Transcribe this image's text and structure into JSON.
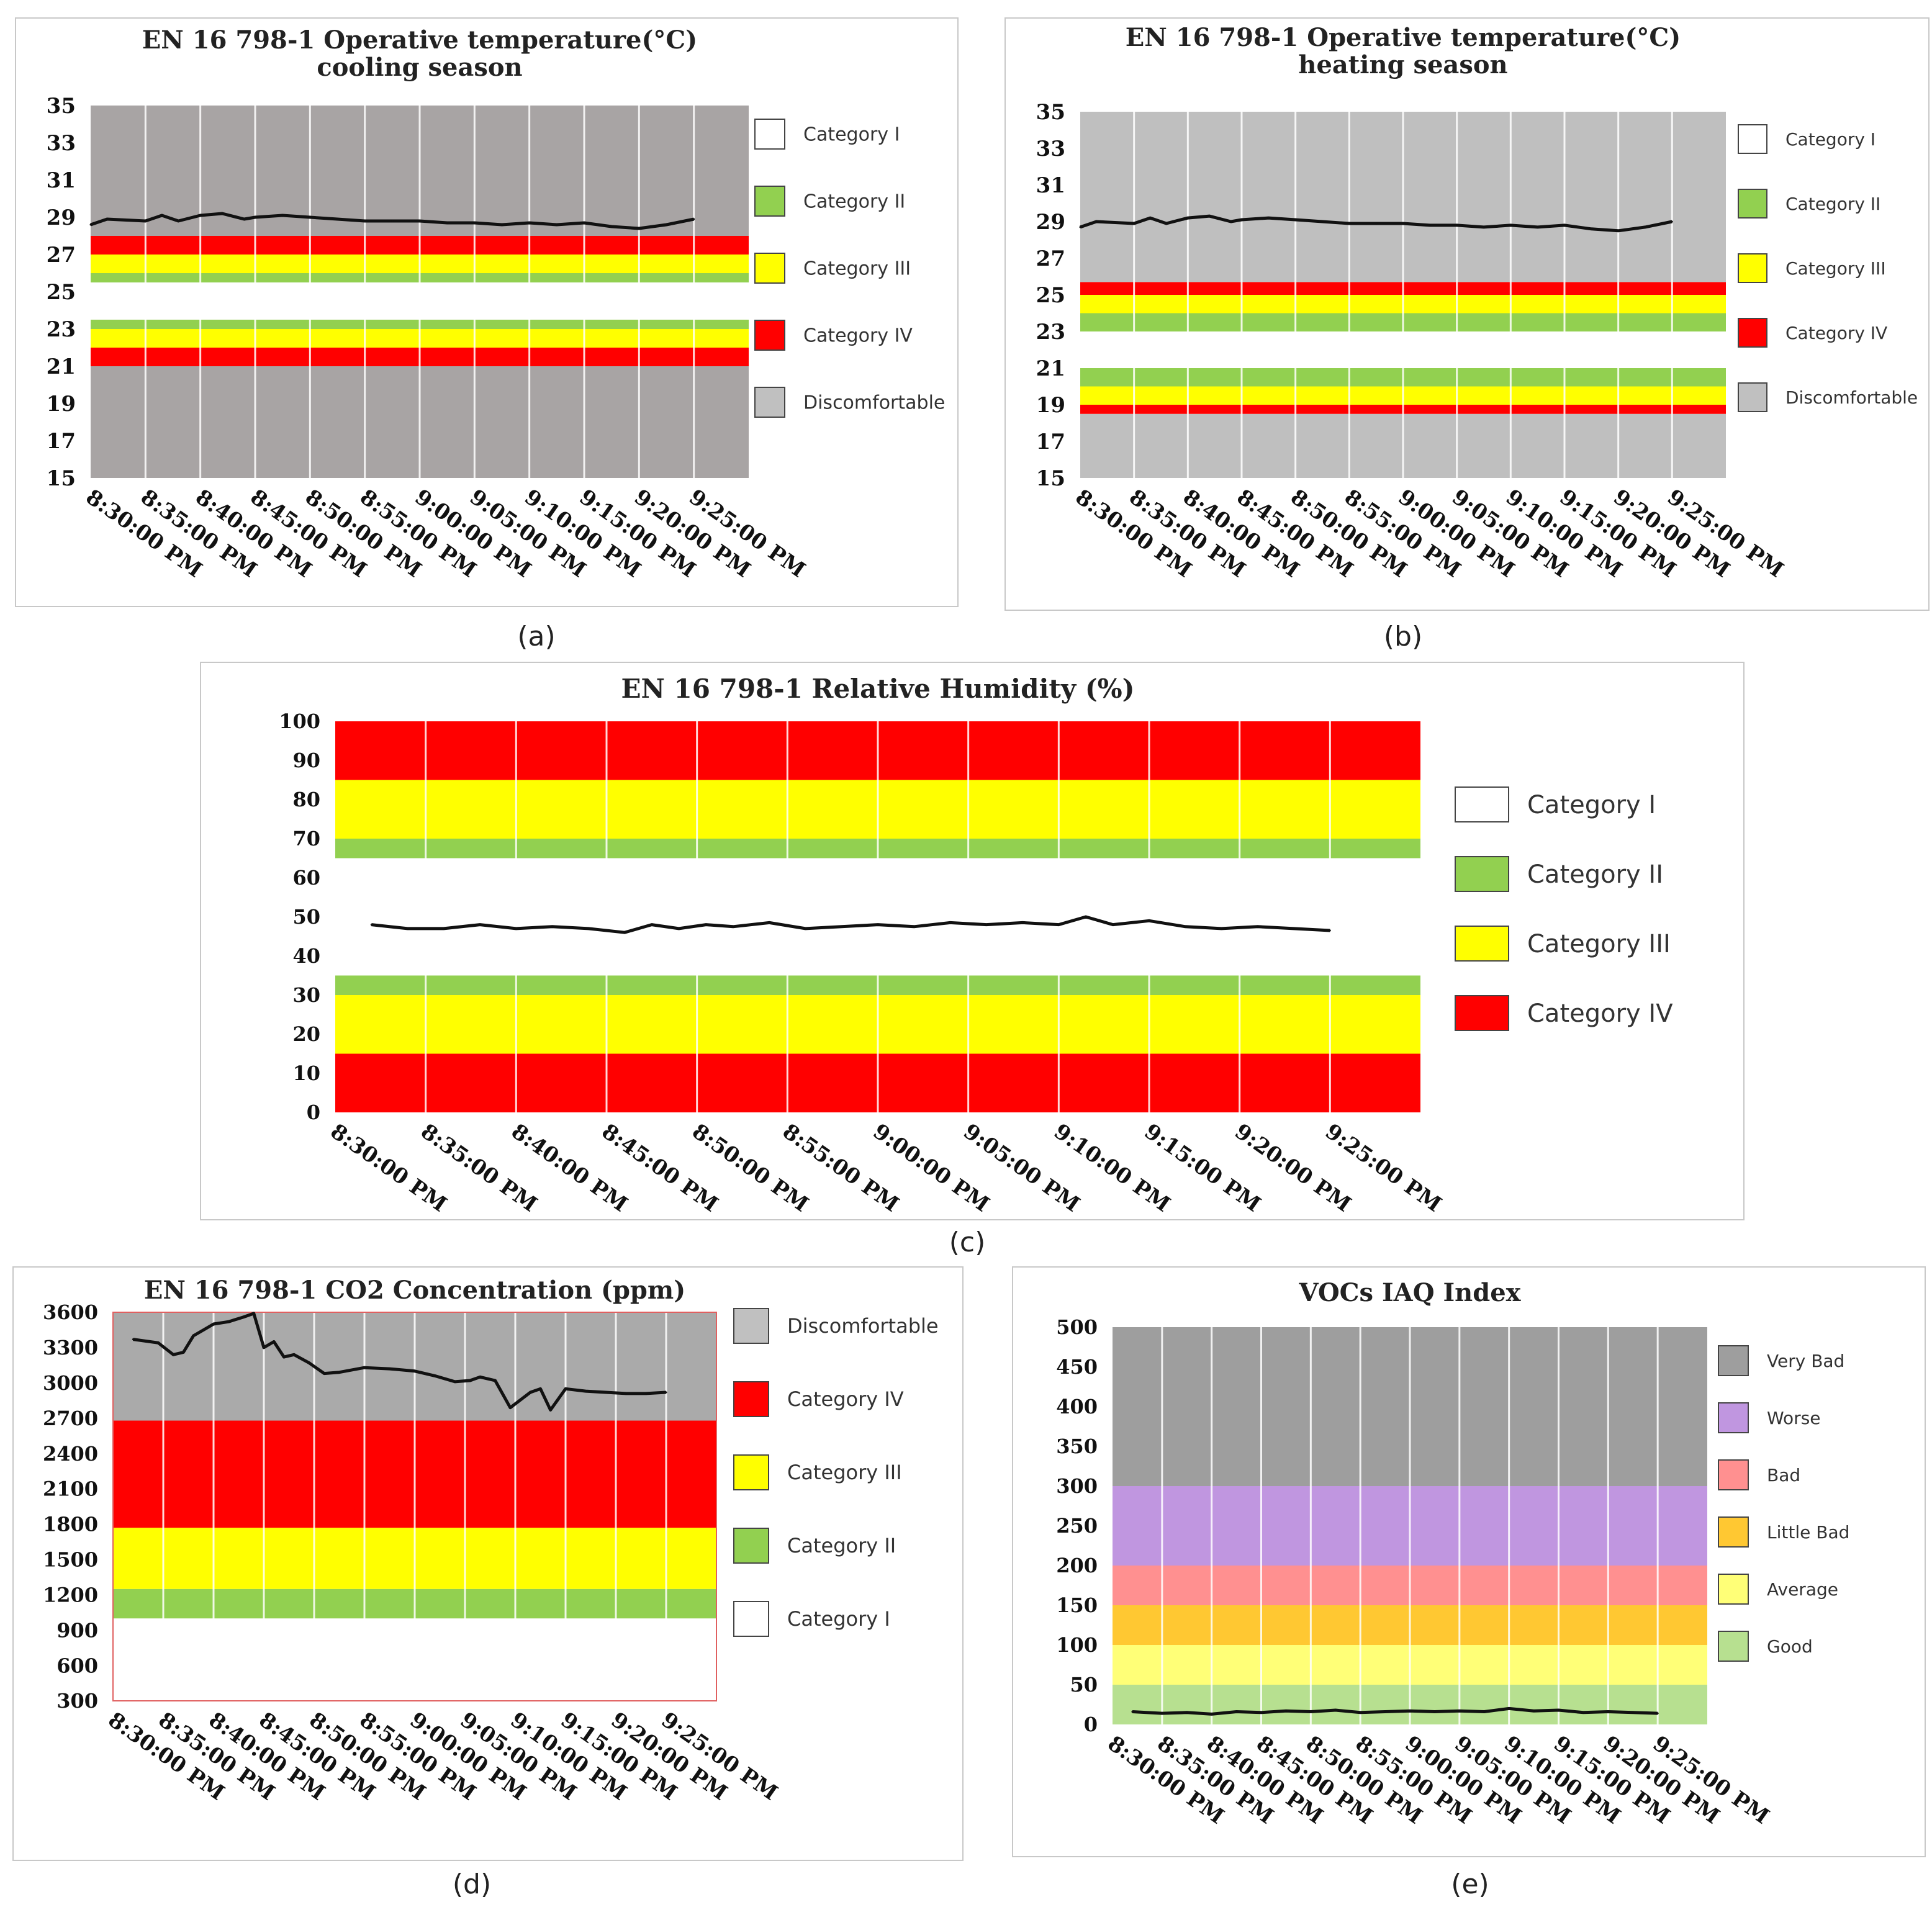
{
  "captions": [
    "(a)",
    "(b)",
    "(c)",
    "(d)",
    "(e)"
  ],
  "chart_data": [
    {
      "id": "a",
      "type": "line",
      "title_lines": [
        "EN 16 798-1 Operative temperature(°C)",
        "cooling season"
      ],
      "categories": [
        "8:30:00 PM",
        "8:35:00 PM",
        "8:40:00 PM",
        "8:45:00 PM",
        "8:50:00 PM",
        "8:55:00 PM",
        "9:00:00 PM",
        "9:05:00 PM",
        "9:10:00 PM",
        "9:15:00 PM",
        "9:20:00 PM",
        "9:25:00 PM"
      ],
      "yticks": [
        15,
        17,
        19,
        21,
        23,
        25,
        27,
        29,
        31,
        33,
        35
      ],
      "ylim": [
        15,
        35
      ],
      "grid": true,
      "bands": [
        {
          "from": 15,
          "to": 21,
          "color": "#a8a4a4"
        },
        {
          "from": 21,
          "to": 22,
          "color": "#ff0000"
        },
        {
          "from": 22,
          "to": 23,
          "color": "#ffff00"
        },
        {
          "from": 23,
          "to": 23.5,
          "color": "#92d050"
        },
        {
          "from": 23.5,
          "to": 25.5,
          "color": "#ffffff"
        },
        {
          "from": 25.5,
          "to": 26,
          "color": "#92d050"
        },
        {
          "from": 26,
          "to": 27,
          "color": "#ffff00"
        },
        {
          "from": 27,
          "to": 28,
          "color": "#ff0000"
        },
        {
          "from": 28,
          "to": 35,
          "color": "#a8a4a4"
        }
      ],
      "series": [
        {
          "name": "Operative temperature",
          "x": [
            0,
            0.3,
            1,
            1.3,
            1.6,
            2,
            2.4,
            2.8,
            3,
            3.5,
            4,
            4.5,
            5,
            5.5,
            6,
            6.5,
            7,
            7.5,
            8,
            8.5,
            9,
            9.5,
            10,
            10.5,
            11
          ],
          "values": [
            28.6,
            28.9,
            28.8,
            29.1,
            28.8,
            29.1,
            29.2,
            28.9,
            29.0,
            29.1,
            29.0,
            28.9,
            28.8,
            28.8,
            28.8,
            28.7,
            28.7,
            28.6,
            28.7,
            28.6,
            28.7,
            28.5,
            28.4,
            28.6,
            28.9
          ]
        }
      ],
      "legend": [
        {
          "label": "Category I",
          "color": "#ffffff"
        },
        {
          "label": "Category II",
          "color": "#92d050"
        },
        {
          "label": "Category III",
          "color": "#ffff00"
        },
        {
          "label": "Category IV",
          "color": "#ff0000"
        },
        {
          "label": "Discomfortable",
          "color": "#c0c0c0"
        }
      ]
    },
    {
      "id": "b",
      "type": "line",
      "title_lines": [
        "EN 16 798-1 Operative temperature(°C)",
        "heating season"
      ],
      "categories": [
        "8:30:00 PM",
        "8:35:00 PM",
        "8:40:00 PM",
        "8:45:00 PM",
        "8:50:00 PM",
        "8:55:00 PM",
        "9:00:00 PM",
        "9:05:00 PM",
        "9:10:00 PM",
        "9:15:00 PM",
        "9:20:00 PM",
        "9:25:00 PM"
      ],
      "yticks": [
        15,
        17,
        19,
        21,
        23,
        25,
        27,
        29,
        31,
        33,
        35
      ],
      "ylim": [
        15,
        35
      ],
      "grid": true,
      "bands": [
        {
          "from": 15,
          "to": 18.5,
          "color": "#bfbfbf"
        },
        {
          "from": 18.5,
          "to": 19,
          "color": "#ff0000"
        },
        {
          "from": 19,
          "to": 20,
          "color": "#ffff00"
        },
        {
          "from": 20,
          "to": 21,
          "color": "#92d050"
        },
        {
          "from": 21,
          "to": 23,
          "color": "#ffffff"
        },
        {
          "from": 23,
          "to": 24,
          "color": "#92d050"
        },
        {
          "from": 24,
          "to": 25,
          "color": "#ffff00"
        },
        {
          "from": 25,
          "to": 25.7,
          "color": "#ff0000"
        },
        {
          "from": 25.7,
          "to": 35,
          "color": "#bfbfbf"
        }
      ],
      "series": [
        {
          "name": "Operative temperature",
          "x": [
            0,
            0.3,
            1,
            1.3,
            1.6,
            2,
            2.4,
            2.8,
            3,
            3.5,
            4,
            4.5,
            5,
            5.5,
            6,
            6.5,
            7,
            7.5,
            8,
            8.5,
            9,
            9.5,
            10,
            10.5,
            11
          ],
          "values": [
            28.7,
            29.0,
            28.9,
            29.2,
            28.9,
            29.2,
            29.3,
            29.0,
            29.1,
            29.2,
            29.1,
            29.0,
            28.9,
            28.9,
            28.9,
            28.8,
            28.8,
            28.7,
            28.8,
            28.7,
            28.8,
            28.6,
            28.5,
            28.7,
            29.0
          ]
        }
      ],
      "legend": [
        {
          "label": "Category I",
          "color": "#ffffff"
        },
        {
          "label": "Category II",
          "color": "#92d050"
        },
        {
          "label": "Category III",
          "color": "#ffff00"
        },
        {
          "label": "Category IV",
          "color": "#ff0000"
        },
        {
          "label": "Discomfortable",
          "color": "#c0c0c0"
        }
      ]
    },
    {
      "id": "c",
      "type": "line",
      "title_lines": [
        "EN 16 798-1 Relative Humidity (%)"
      ],
      "categories": [
        "8:30:00 PM",
        "8:35:00 PM",
        "8:40:00 PM",
        "8:45:00 PM",
        "8:50:00 PM",
        "8:55:00 PM",
        "9:00:00 PM",
        "9:05:00 PM",
        "9:10:00 PM",
        "9:15:00 PM",
        "9:20:00 PM",
        "9:25:00 PM"
      ],
      "yticks": [
        0,
        10,
        20,
        30,
        40,
        50,
        60,
        70,
        80,
        90,
        100
      ],
      "ylim": [
        0,
        100
      ],
      "grid": true,
      "bands": [
        {
          "from": 0,
          "to": 15,
          "color": "#ff0000"
        },
        {
          "from": 15,
          "to": 30,
          "color": "#ffff00"
        },
        {
          "from": 30,
          "to": 35,
          "color": "#92d050"
        },
        {
          "from": 35,
          "to": 65,
          "color": "#ffffff"
        },
        {
          "from": 65,
          "to": 70,
          "color": "#92d050"
        },
        {
          "from": 70,
          "to": 85,
          "color": "#ffff00"
        },
        {
          "from": 85,
          "to": 100,
          "color": "#ff0000"
        }
      ],
      "series": [
        {
          "name": "Relative humidity",
          "x": [
            0.4,
            0.8,
            1.2,
            1.6,
            2,
            2.4,
            2.8,
            3.2,
            3.5,
            3.8,
            4.1,
            4.4,
            4.8,
            5.2,
            5.6,
            6,
            6.4,
            6.8,
            7.2,
            7.6,
            8,
            8.3,
            8.6,
            9,
            9.4,
            9.8,
            10.2,
            10.6,
            11
          ],
          "values": [
            48,
            47,
            47,
            48,
            47,
            47.5,
            47,
            46,
            48,
            47,
            48,
            47.5,
            48.5,
            47,
            47.5,
            48,
            47.5,
            48.5,
            48,
            48.5,
            48,
            50,
            48,
            49,
            47.5,
            47,
            47.5,
            47,
            46.5
          ]
        }
      ],
      "legend": [
        {
          "label": "Category I",
          "color": "#ffffff"
        },
        {
          "label": "Category II",
          "color": "#92d050"
        },
        {
          "label": "Category III",
          "color": "#ffff00"
        },
        {
          "label": "Category IV",
          "color": "#ff0000"
        }
      ]
    },
    {
      "id": "d",
      "type": "line",
      "title_lines": [
        "EN 16 798-1 CO2 Concentration (ppm)"
      ],
      "categories": [
        "8:30:00 PM",
        "8:35:00 PM",
        "8:40:00 PM",
        "8:45:00 PM",
        "8:50:00 PM",
        "8:55:00 PM",
        "9:00:00 PM",
        "9:05:00 PM",
        "9:10:00 PM",
        "9:15:00 PM",
        "9:20:00 PM",
        "9:25:00 PM"
      ],
      "yticks": [
        300,
        600,
        900,
        1200,
        1500,
        1800,
        2100,
        2400,
        2700,
        3000,
        3300,
        3600
      ],
      "ylim": [
        300,
        3600
      ],
      "grid": true,
      "bands": [
        {
          "from": 300,
          "to": 1000,
          "color": "#ffffff"
        },
        {
          "from": 1000,
          "to": 1250,
          "color": "#92d050"
        },
        {
          "from": 1250,
          "to": 1770,
          "color": "#ffff00"
        },
        {
          "from": 1770,
          "to": 2680,
          "color": "#ff0000"
        },
        {
          "from": 2680,
          "to": 3600,
          "color": "#aaaaaa"
        }
      ],
      "series": [
        {
          "name": "CO2 concentration",
          "x": [
            0.4,
            0.9,
            1.2,
            1.4,
            1.6,
            1.8,
            2.0,
            2.3,
            2.6,
            2.8,
            3.0,
            3.2,
            3.4,
            3.6,
            3.9,
            4.2,
            4.5,
            5,
            5.5,
            6,
            6.4,
            6.8,
            7.1,
            7.3,
            7.6,
            7.9,
            8.3,
            8.5,
            8.7,
            9.0,
            9.4,
            9.8,
            10.2,
            10.6,
            11
          ],
          "values": [
            3370,
            3340,
            3240,
            3260,
            3400,
            3450,
            3500,
            3520,
            3560,
            3590,
            3300,
            3350,
            3220,
            3240,
            3170,
            3080,
            3090,
            3130,
            3120,
            3100,
            3060,
            3010,
            3020,
            3050,
            3020,
            2790,
            2920,
            2950,
            2770,
            2950,
            2930,
            2920,
            2910,
            2910,
            2920
          ]
        }
      ],
      "legend": [
        {
          "label": "Discomfortable",
          "color": "#c0c0c0"
        },
        {
          "label": "Category IV",
          "color": "#ff0000"
        },
        {
          "label": "Category III",
          "color": "#ffff00"
        },
        {
          "label": "Category II",
          "color": "#92d050"
        },
        {
          "label": "Category I",
          "color": "#ffffff"
        }
      ]
    },
    {
      "id": "e",
      "type": "line",
      "title_lines": [
        "VOCs IAQ Index"
      ],
      "categories": [
        "8:30:00 PM",
        "8:35:00 PM",
        "8:40:00 PM",
        "8:45:00 PM",
        "8:50:00 PM",
        "8:55:00 PM",
        "9:00:00 PM",
        "9:05:00 PM",
        "9:10:00 PM",
        "9:15:00 PM",
        "9:20:00 PM",
        "9:25:00 PM"
      ],
      "yticks": [
        0,
        50,
        100,
        150,
        200,
        250,
        300,
        350,
        400,
        450,
        500
      ],
      "ylim": [
        0,
        500
      ],
      "grid": true,
      "bands": [
        {
          "from": 0,
          "to": 50,
          "color": "#b7e090"
        },
        {
          "from": 50,
          "to": 100,
          "color": "#ffff77"
        },
        {
          "from": 100,
          "to": 150,
          "color": "#ffc832"
        },
        {
          "from": 150,
          "to": 200,
          "color": "#ff9090"
        },
        {
          "from": 200,
          "to": 300,
          "color": "#c096e0"
        },
        {
          "from": 300,
          "to": 500,
          "color": "#9e9e9e"
        }
      ],
      "series": [
        {
          "name": "VOCs IAQ index",
          "x": [
            0.4,
            1,
            1.5,
            2,
            2.5,
            3,
            3.5,
            4,
            4.5,
            5,
            5.5,
            6,
            6.5,
            7,
            7.5,
            8,
            8.5,
            9,
            9.5,
            10,
            10.5,
            11
          ],
          "values": [
            16,
            14,
            15,
            13,
            16,
            15,
            17,
            16,
            18,
            15,
            16,
            17,
            16,
            17,
            16,
            20,
            17,
            18,
            15,
            16,
            15,
            14
          ]
        }
      ],
      "legend": [
        {
          "label": "Very Bad",
          "color": "#9e9e9e"
        },
        {
          "label": "Worse",
          "color": "#c096e0"
        },
        {
          "label": "Bad",
          "color": "#ff9090"
        },
        {
          "label": "Little Bad",
          "color": "#ffc832"
        },
        {
          "label": "Average",
          "color": "#ffff77"
        },
        {
          "label": "Good",
          "color": "#b7e090"
        }
      ]
    }
  ]
}
